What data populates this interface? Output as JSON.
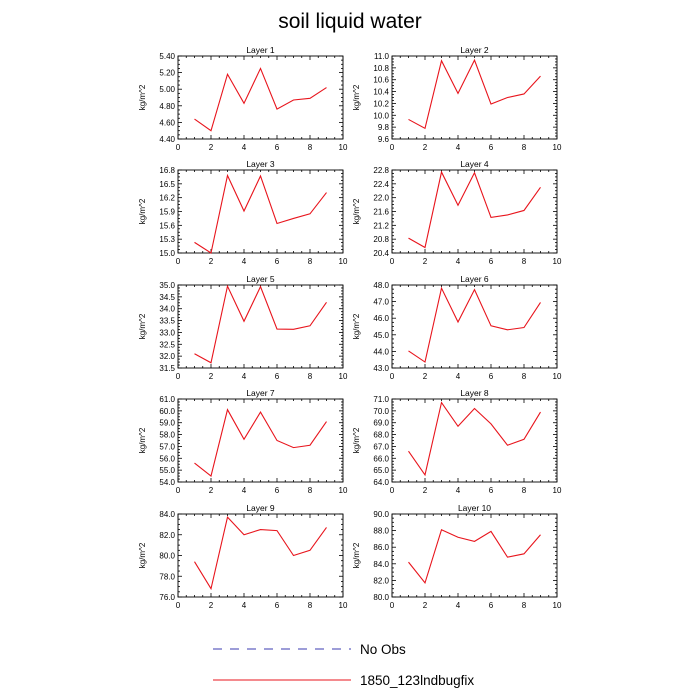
{
  "chart_data": {
    "type": "line",
    "title": "soil liquid water",
    "ylabel": "kg/m^2",
    "xlim": [
      0,
      10
    ],
    "x_ticks": [
      0,
      2,
      4,
      6,
      8,
      10
    ],
    "x": [
      1,
      2,
      3,
      4,
      5,
      6,
      7,
      8,
      9
    ],
    "series_color": "#e8141c",
    "legend": [
      {
        "name": "No Obs",
        "style": "dashed",
        "color": "#3b3bb0"
      },
      {
        "name": "1850_123lndbugfix",
        "style": "solid",
        "color": "#e8141c"
      }
    ],
    "panels": [
      {
        "title": "Layer 1",
        "ylim": [
          4.4,
          5.4
        ],
        "y_ticks": [
          "4.40",
          "4.60",
          "4.80",
          "5.00",
          "5.20",
          "5.40"
        ],
        "values": [
          4.64,
          4.5,
          5.18,
          4.83,
          5.25,
          4.76,
          4.87,
          4.89,
          5.02
        ]
      },
      {
        "title": "Layer 2",
        "ylim": [
          9.6,
          11.0
        ],
        "y_ticks": [
          "9.6",
          "9.8",
          "10.0",
          "10.2",
          "10.4",
          "10.6",
          "10.8",
          "11.0"
        ],
        "values": [
          9.93,
          9.78,
          10.92,
          10.37,
          10.93,
          10.19,
          10.3,
          10.36,
          10.66
        ]
      },
      {
        "title": "Layer 3",
        "ylim": [
          15.0,
          16.8
        ],
        "y_ticks": [
          "15.0",
          "15.3",
          "15.6",
          "15.9",
          "16.2",
          "16.5",
          "16.8"
        ],
        "values": [
          15.23,
          15.0,
          16.68,
          15.91,
          16.67,
          15.64,
          15.75,
          15.85,
          16.31
        ]
      },
      {
        "title": "Layer 4",
        "ylim": [
          20.4,
          22.8
        ],
        "y_ticks": [
          "20.4",
          "20.8",
          "21.2",
          "21.6",
          "22.0",
          "22.4",
          "22.8"
        ],
        "values": [
          20.83,
          20.56,
          22.74,
          21.78,
          22.72,
          21.43,
          21.5,
          21.63,
          22.3
        ]
      },
      {
        "title": "Layer 5",
        "ylim": [
          31.5,
          35.0
        ],
        "y_ticks": [
          "31.5",
          "32.0",
          "32.5",
          "33.0",
          "33.5",
          "34.0",
          "34.5",
          "35.0"
        ],
        "values": [
          32.1,
          31.72,
          34.95,
          33.47,
          34.93,
          33.14,
          33.13,
          33.28,
          34.27
        ]
      },
      {
        "title": "Layer 6",
        "ylim": [
          43.0,
          48.0
        ],
        "y_ticks": [
          "43.0",
          "44.0",
          "45.0",
          "46.0",
          "47.0",
          "48.0"
        ],
        "values": [
          44.03,
          43.36,
          47.81,
          45.77,
          47.72,
          45.54,
          45.3,
          45.44,
          46.95
        ]
      },
      {
        "title": "Layer 7",
        "ylim": [
          54.0,
          61.0
        ],
        "y_ticks": [
          "54.0",
          "55.0",
          "56.0",
          "57.0",
          "58.0",
          "59.0",
          "60.0",
          "61.0"
        ],
        "values": [
          55.6,
          54.5,
          60.1,
          57.6,
          59.9,
          57.5,
          56.9,
          57.1,
          59.1
        ]
      },
      {
        "title": "Layer 8",
        "ylim": [
          64.0,
          71.0
        ],
        "y_ticks": [
          "64.0",
          "65.0",
          "66.0",
          "67.0",
          "68.0",
          "69.0",
          "70.0",
          "71.0"
        ],
        "values": [
          66.6,
          64.6,
          70.7,
          68.7,
          70.2,
          68.9,
          67.1,
          67.6,
          69.9
        ]
      },
      {
        "title": "Layer 9",
        "ylim": [
          76.0,
          84.0
        ],
        "y_ticks": [
          "76.0",
          "78.0",
          "80.0",
          "82.0",
          "84.0"
        ],
        "values": [
          79.4,
          76.8,
          83.7,
          82.0,
          82.5,
          82.4,
          80.0,
          80.5,
          82.7
        ]
      },
      {
        "title": "Layer 10",
        "ylim": [
          80.0,
          90.0
        ],
        "y_ticks": [
          "80.0",
          "82.0",
          "84.0",
          "86.0",
          "88.0",
          "90.0"
        ],
        "values": [
          84.2,
          81.7,
          88.1,
          87.2,
          86.7,
          87.9,
          84.8,
          85.2,
          87.5
        ]
      }
    ]
  }
}
